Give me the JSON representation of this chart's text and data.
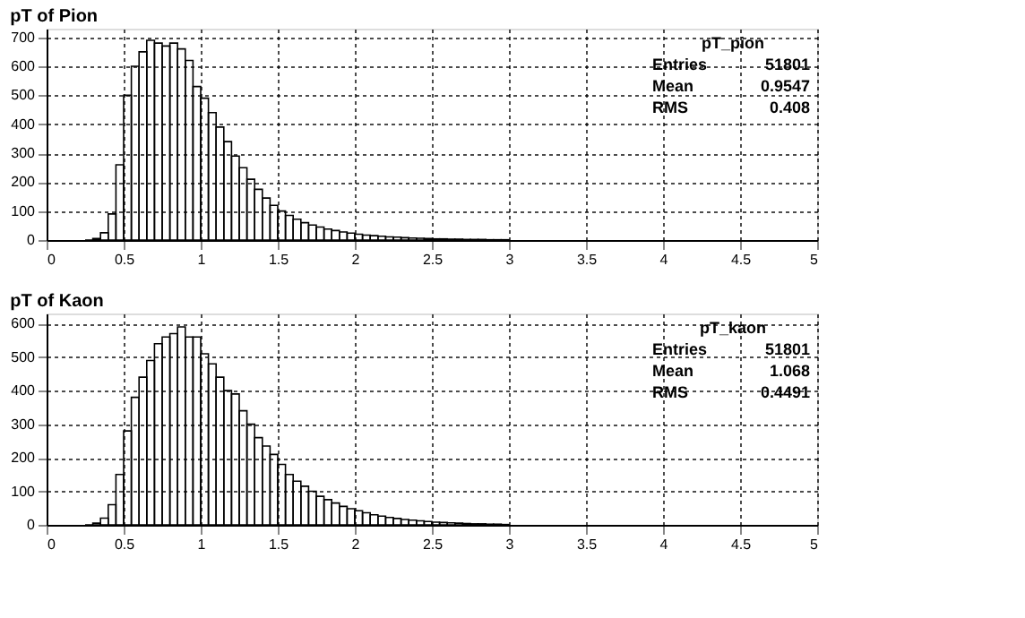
{
  "chart_data": [
    {
      "type": "histogram",
      "title": "pT of Pion",
      "annotations": [
        "pT_pion",
        "Entries 51801",
        "Mean 0.9547",
        "RMS 0.408"
      ],
      "bins": [
        0.25,
        0.3,
        0.35,
        0.4,
        0.45,
        0.5,
        0.55,
        0.6,
        0.65,
        0.7,
        0.75,
        0.8,
        0.85,
        0.9,
        0.95,
        1.0,
        1.05,
        1.1,
        1.15,
        1.2,
        1.25,
        1.3,
        1.35,
        1.4,
        1.45,
        1.5,
        1.55,
        1.6,
        1.65,
        1.7,
        1.75,
        1.8,
        1.85,
        1.9,
        1.95,
        2.0,
        2.05,
        2.1,
        2.15,
        2.2,
        2.25,
        2.3,
        2.35,
        2.4,
        2.45,
        2.5,
        2.55,
        2.6,
        2.65,
        2.7,
        2.75,
        2.8,
        2.85,
        2.9,
        2.95,
        3.0
      ],
      "values": [
        0,
        5,
        25,
        90,
        260,
        500,
        600,
        650,
        690,
        680,
        670,
        680,
        660,
        620,
        530,
        490,
        440,
        390,
        340,
        290,
        250,
        210,
        175,
        145,
        120,
        100,
        85,
        72,
        60,
        52,
        45,
        38,
        33,
        28,
        24,
        20,
        17,
        15,
        13,
        11,
        10,
        8,
        7,
        6,
        5,
        4,
        4,
        3,
        3,
        2,
        2,
        2,
        1,
        1,
        1
      ],
      "color": "#000000",
      "xlim": [
        0,
        5
      ],
      "xticks": [
        0,
        0.5,
        1,
        1.5,
        2,
        2.5,
        3,
        3.5,
        4,
        4.5,
        5
      ],
      "ylim": [
        0,
        730
      ],
      "yticks": [
        0,
        100,
        200,
        300,
        400,
        500,
        600,
        700
      ],
      "grid": true
    },
    {
      "type": "histogram",
      "title": "pT of Kaon",
      "annotations": [
        "pT_kaon",
        "Entries 51801",
        "Mean 1.068",
        "RMS 0.4491"
      ],
      "bins": [
        0.25,
        0.3,
        0.35,
        0.4,
        0.45,
        0.5,
        0.55,
        0.6,
        0.65,
        0.7,
        0.75,
        0.8,
        0.85,
        0.9,
        0.95,
        1.0,
        1.05,
        1.1,
        1.15,
        1.2,
        1.25,
        1.3,
        1.35,
        1.4,
        1.45,
        1.5,
        1.55,
        1.6,
        1.65,
        1.7,
        1.75,
        1.8,
        1.85,
        1.9,
        1.95,
        2.0,
        2.05,
        2.1,
        2.15,
        2.2,
        2.25,
        2.3,
        2.35,
        2.4,
        2.45,
        2.5,
        2.55,
        2.6,
        2.65,
        2.7,
        2.75,
        2.8,
        2.85,
        2.9,
        2.95,
        3.0
      ],
      "values": [
        0,
        5,
        20,
        60,
        150,
        280,
        380,
        440,
        490,
        540,
        560,
        570,
        590,
        560,
        560,
        510,
        480,
        440,
        400,
        390,
        340,
        300,
        260,
        235,
        210,
        180,
        150,
        130,
        115,
        100,
        85,
        75,
        65,
        55,
        48,
        42,
        36,
        30,
        26,
        22,
        19,
        16,
        14,
        12,
        10,
        8,
        7,
        6,
        5,
        4,
        3,
        3,
        2,
        2,
        1
      ],
      "color": "#000000",
      "xlim": [
        0,
        5
      ],
      "xticks": [
        0,
        0.5,
        1,
        1.5,
        2,
        2.5,
        3,
        3.5,
        4,
        4.5,
        5
      ],
      "ylim": [
        0,
        630
      ],
      "yticks": [
        0,
        100,
        200,
        300,
        400,
        500,
        600
      ],
      "grid": true
    }
  ]
}
